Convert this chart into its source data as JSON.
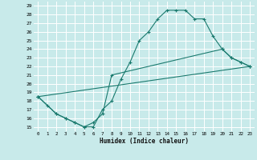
{
  "xlabel": "Humidex (Indice chaleur)",
  "bg_color": "#c8eaea",
  "grid_color": "#ffffff",
  "line_color": "#1a7a6e",
  "xlim": [
    -0.5,
    23.5
  ],
  "ylim": [
    14.5,
    29.5
  ],
  "xticks": [
    0,
    1,
    2,
    3,
    4,
    5,
    6,
    7,
    8,
    9,
    10,
    11,
    12,
    13,
    14,
    15,
    16,
    17,
    18,
    19,
    20,
    21,
    22,
    23
  ],
  "yticks": [
    15,
    16,
    17,
    18,
    19,
    20,
    21,
    22,
    23,
    24,
    25,
    26,
    27,
    28,
    29
  ],
  "line1_x": [
    0,
    1,
    2,
    3,
    4,
    5,
    6,
    7,
    8,
    9,
    10,
    11,
    12,
    13,
    14,
    15,
    16,
    17,
    18,
    19,
    20,
    21,
    22,
    23
  ],
  "line1_y": [
    18.5,
    17.5,
    16.5,
    16.0,
    15.5,
    15.0,
    15.0,
    17.0,
    18.0,
    20.5,
    22.5,
    25.0,
    26.0,
    27.5,
    28.5,
    28.5,
    28.5,
    27.5,
    27.5,
    25.5,
    24.0,
    23.0,
    22.5,
    22.0
  ],
  "line2_x": [
    0,
    2,
    3,
    4,
    5,
    6,
    7,
    8,
    20,
    21,
    22,
    23
  ],
  "line2_y": [
    18.5,
    16.5,
    16.0,
    15.5,
    15.0,
    15.5,
    16.5,
    21.0,
    24.0,
    23.0,
    22.5,
    22.0
  ],
  "line3_x": [
    0,
    23
  ],
  "line3_y": [
    18.5,
    22.0
  ]
}
